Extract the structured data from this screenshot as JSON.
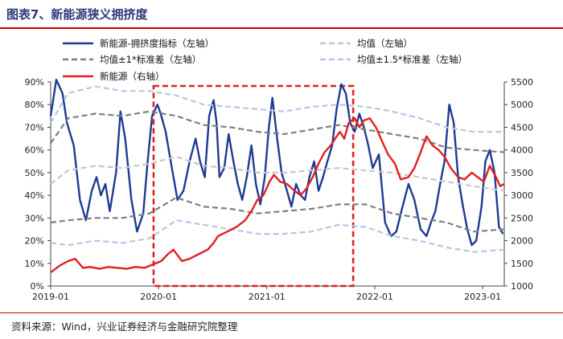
{
  "header": {
    "title": "图表7、新能源狭义拥挤度"
  },
  "footer": {
    "source": "资料来源：Wind，兴业证券经济与金融研究院整理"
  },
  "chart_data": {
    "type": "line",
    "xlim": [
      "2019-01-01",
      "2023-03-15"
    ],
    "x_ticks": [
      {
        "date": "2019-01-01",
        "label": "2019-01"
      },
      {
        "date": "2020-01-01",
        "label": "2020-01"
      },
      {
        "date": "2021-01-01",
        "label": "2021-01"
      },
      {
        "date": "2022-01-01",
        "label": "2022-01"
      },
      {
        "date": "2023-01-01",
        "label": "2023-01"
      }
    ],
    "y_left": {
      "lim": [
        0,
        90
      ],
      "ticks": [
        0,
        10,
        20,
        30,
        40,
        50,
        60,
        70,
        80,
        90
      ],
      "labels": [
        "0%",
        "10%",
        "20%",
        "30%",
        "40%",
        "50%",
        "60%",
        "70%",
        "80%",
        "90%"
      ]
    },
    "y_right": {
      "lim": [
        1000,
        5500
      ],
      "ticks": [
        1000,
        1500,
        2000,
        2500,
        3000,
        3500,
        4000,
        4500,
        5000,
        5500
      ],
      "labels": [
        "1000",
        "1500",
        "2000",
        "2500",
        "3000",
        "3500",
        "4000",
        "4500",
        "5000",
        "5500"
      ]
    },
    "highlight": {
      "from": "2019-12-15",
      "to": "2021-10-20",
      "color": "#e02020"
    },
    "legend": [
      {
        "key": "crowd",
        "label": "新能源-拥挤度指标（左轴）",
        "color": "#1f3a93",
        "style": "solid"
      },
      {
        "key": "mean",
        "label": "均值（左轴）",
        "color": "#c8c8c8",
        "style": "dash"
      },
      {
        "key": "sd1",
        "label": "均值±1*标准差（左轴）",
        "color": "#7f7f7f",
        "style": "dash"
      },
      {
        "key": "sd15",
        "label": "均值±1.5*标准差（左轴）",
        "color": "#b4c7e7",
        "style": "dash"
      },
      {
        "key": "price",
        "label": "新能源（右轴）",
        "color": "#e02020",
        "style": "solid"
      }
    ],
    "series": [
      {
        "name": "新能源-拥挤度指标（左轴）",
        "axis": "left",
        "color": "#1f3a93",
        "style": "solid",
        "x": [
          "2019-01-01",
          "2019-01-20",
          "2019-02-10",
          "2019-02-25",
          "2019-03-20",
          "2019-04-10",
          "2019-04-30",
          "2019-05-20",
          "2019-06-05",
          "2019-06-20",
          "2019-07-05",
          "2019-07-20",
          "2019-08-10",
          "2019-08-25",
          "2019-09-10",
          "2019-10-01",
          "2019-10-20",
          "2019-11-10",
          "2019-11-25",
          "2019-12-10",
          "2019-12-28",
          "2020-01-08",
          "2020-01-25",
          "2020-02-15",
          "2020-03-05",
          "2020-03-25",
          "2020-04-15",
          "2020-05-05",
          "2020-05-20",
          "2020-06-05",
          "2020-06-20",
          "2020-07-05",
          "2020-07-15",
          "2020-07-25",
          "2020-08-10",
          "2020-08-25",
          "2020-09-10",
          "2020-09-25",
          "2020-10-10",
          "2020-10-25",
          "2020-11-10",
          "2020-11-25",
          "2020-12-10",
          "2020-12-25",
          "2021-01-08",
          "2021-01-20",
          "2021-02-05",
          "2021-02-20",
          "2021-03-10",
          "2021-03-25",
          "2021-04-10",
          "2021-04-25",
          "2021-05-10",
          "2021-05-25",
          "2021-06-10",
          "2021-06-25",
          "2021-07-10",
          "2021-07-25",
          "2021-08-10",
          "2021-08-25",
          "2021-09-10",
          "2021-09-25",
          "2021-10-10",
          "2021-10-25",
          "2021-11-10",
          "2021-11-25",
          "2021-12-10",
          "2021-12-25",
          "2022-01-15",
          "2022-02-05",
          "2022-02-25",
          "2022-03-15",
          "2022-04-05",
          "2022-04-25",
          "2022-05-15",
          "2022-06-05",
          "2022-06-25",
          "2022-07-10",
          "2022-07-25",
          "2022-08-10",
          "2022-08-25",
          "2022-09-10",
          "2022-09-25",
          "2022-10-10",
          "2022-10-25",
          "2022-11-10",
          "2022-11-25",
          "2022-12-10",
          "2022-12-28",
          "2023-01-10",
          "2023-01-25",
          "2023-02-10",
          "2023-02-25",
          "2023-03-10"
        ],
        "y": [
          75,
          91,
          85,
          72,
          62,
          38,
          29,
          42,
          48,
          40,
          45,
          33,
          50,
          77,
          65,
          38,
          24,
          32,
          55,
          75,
          80,
          76,
          68,
          52,
          38,
          42,
          55,
          65,
          55,
          48,
          75,
          82,
          72,
          48,
          52,
          67,
          55,
          45,
          38,
          48,
          62,
          45,
          36,
          48,
          70,
          83,
          65,
          50,
          42,
          35,
          45,
          40,
          38,
          48,
          55,
          42,
          48,
          55,
          62,
          78,
          89,
          85,
          72,
          68,
          76,
          70,
          62,
          52,
          58,
          28,
          22,
          24,
          35,
          45,
          38,
          25,
          22,
          28,
          33,
          45,
          55,
          80,
          72,
          48,
          36,
          25,
          18,
          20,
          35,
          55,
          60,
          50,
          26,
          23
        ]
      },
      {
        "name": "均值（左轴）",
        "axis": "left",
        "color": "#c8c8c8",
        "style": "dash",
        "x": [
          "2019-01-01",
          "2019-03-01",
          "2019-06-01",
          "2019-09-01",
          "2019-12-01",
          "2020-03-01",
          "2020-06-01",
          "2020-09-01",
          "2020-12-01",
          "2021-03-01",
          "2021-06-01",
          "2021-09-01",
          "2021-12-01",
          "2022-03-01",
          "2022-06-01",
          "2022-09-01",
          "2022-12-01",
          "2023-03-15"
        ],
        "y": [
          45,
          51,
          53,
          52,
          54,
          57,
          53,
          52,
          50,
          50,
          51,
          52,
          51,
          50,
          48,
          46,
          44,
          42
        ]
      },
      {
        "name": "均值+1*标准差（左轴）",
        "axis": "left",
        "color": "#7f7f7f",
        "style": "dash",
        "x": [
          "2019-01-01",
          "2019-03-01",
          "2019-06-01",
          "2019-09-01",
          "2019-12-01",
          "2020-03-01",
          "2020-06-01",
          "2020-09-01",
          "2020-12-01",
          "2021-03-01",
          "2021-06-01",
          "2021-09-01",
          "2021-12-01",
          "2022-03-01",
          "2022-06-01",
          "2022-09-01",
          "2022-12-01",
          "2023-03-15"
        ],
        "y": [
          63,
          74,
          76,
          75,
          77,
          75,
          71,
          70,
          68,
          67,
          69,
          71,
          69,
          67,
          65,
          61,
          60,
          59
        ]
      },
      {
        "name": "均值-1*标准差（左轴）",
        "axis": "left",
        "color": "#7f7f7f",
        "style": "dash",
        "x": [
          "2019-01-01",
          "2019-03-01",
          "2019-06-01",
          "2019-09-01",
          "2019-12-01",
          "2020-03-01",
          "2020-06-01",
          "2020-09-01",
          "2020-12-01",
          "2021-03-01",
          "2021-06-01",
          "2021-09-01",
          "2021-12-01",
          "2022-03-01",
          "2022-06-01",
          "2022-09-01",
          "2022-12-01",
          "2023-03-15"
        ],
        "y": [
          28,
          29,
          30,
          30,
          32,
          39,
          35,
          34,
          32,
          33,
          34,
          36,
          36,
          32,
          30,
          28,
          24,
          25
        ]
      },
      {
        "name": "均值+1.5*标准差（左轴）",
        "axis": "left",
        "color": "#b4c7e7",
        "style": "dash",
        "x": [
          "2019-01-01",
          "2019-03-01",
          "2019-06-01",
          "2019-09-01",
          "2019-12-01",
          "2020-03-01",
          "2020-06-01",
          "2020-09-01",
          "2020-12-01",
          "2021-03-01",
          "2021-06-01",
          "2021-09-01",
          "2021-12-01",
          "2022-03-01",
          "2022-06-01",
          "2022-09-01",
          "2022-12-01",
          "2023-03-15"
        ],
        "y": [
          72,
          85,
          88,
          86,
          86,
          84,
          80,
          79,
          78,
          77,
          79,
          80,
          79,
          77,
          74,
          70,
          68,
          68
        ]
      },
      {
        "name": "均值-1.5*标准差（左轴）",
        "axis": "left",
        "color": "#b4c7e7",
        "style": "dash",
        "x": [
          "2019-01-01",
          "2019-03-01",
          "2019-06-01",
          "2019-09-01",
          "2019-12-01",
          "2020-03-01",
          "2020-06-01",
          "2020-09-01",
          "2020-12-01",
          "2021-03-01",
          "2021-06-01",
          "2021-09-01",
          "2021-12-01",
          "2022-03-01",
          "2022-06-01",
          "2022-09-01",
          "2022-12-01",
          "2023-03-15"
        ],
        "y": [
          19,
          18,
          20,
          19,
          21,
          29,
          27,
          25,
          23,
          23,
          24,
          27,
          26,
          22,
          20,
          17,
          15,
          16
        ]
      },
      {
        "name": "新能源（右轴）",
        "axis": "right",
        "color": "#e02020",
        "style": "solid",
        "x": [
          "2019-01-01",
          "2019-02-01",
          "2019-03-01",
          "2019-03-25",
          "2019-04-20",
          "2019-05-15",
          "2019-06-15",
          "2019-07-15",
          "2019-08-15",
          "2019-09-15",
          "2019-10-15",
          "2019-11-15",
          "2019-12-15",
          "2020-01-10",
          "2020-02-01",
          "2020-02-20",
          "2020-03-20",
          "2020-04-15",
          "2020-05-15",
          "2020-06-15",
          "2020-07-05",
          "2020-07-20",
          "2020-08-20",
          "2020-09-20",
          "2020-10-20",
          "2020-11-10",
          "2020-11-30",
          "2020-12-20",
          "2021-01-10",
          "2021-01-25",
          "2021-02-15",
          "2021-03-10",
          "2021-04-05",
          "2021-04-25",
          "2021-05-15",
          "2021-06-05",
          "2021-06-25",
          "2021-07-15",
          "2021-08-05",
          "2021-08-20",
          "2021-09-05",
          "2021-09-20",
          "2021-10-05",
          "2021-10-25",
          "2021-11-10",
          "2021-11-25",
          "2021-12-15",
          "2022-01-05",
          "2022-01-25",
          "2022-02-15",
          "2022-03-10",
          "2022-03-30",
          "2022-04-25",
          "2022-05-15",
          "2022-06-05",
          "2022-06-25",
          "2022-07-15",
          "2022-08-05",
          "2022-08-25",
          "2022-09-15",
          "2022-10-10",
          "2022-11-01",
          "2022-11-25",
          "2022-12-15",
          "2023-01-05",
          "2023-01-25",
          "2023-02-15",
          "2023-03-01",
          "2023-03-15"
        ],
        "y": [
          1300,
          1450,
          1550,
          1600,
          1400,
          1420,
          1380,
          1420,
          1400,
          1380,
          1420,
          1400,
          1480,
          1550,
          1700,
          1800,
          1550,
          1600,
          1700,
          1800,
          1950,
          2100,
          2200,
          2300,
          2450,
          2650,
          2900,
          3000,
          3300,
          3450,
          3300,
          3250,
          3100,
          3000,
          3150,
          3400,
          3700,
          3950,
          4100,
          4250,
          4400,
          4250,
          4600,
          4700,
          4500,
          4650,
          4700,
          4500,
          4200,
          3900,
          3700,
          3350,
          3400,
          3600,
          3950,
          4300,
          4100,
          4000,
          3850,
          3600,
          3400,
          3350,
          3500,
          3400,
          3300,
          3650,
          3400,
          3200,
          3250
        ]
      }
    ]
  }
}
